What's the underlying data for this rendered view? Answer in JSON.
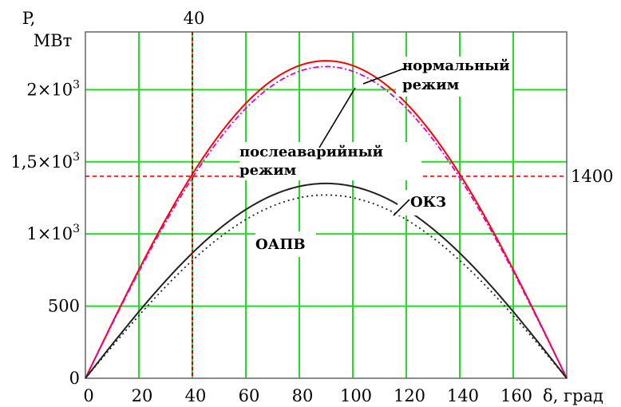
{
  "chart_data": {
    "type": "line",
    "ylabel": "P,",
    "yunit": "МВт",
    "xlabel": "δ, град",
    "xlim": [
      0,
      180
    ],
    "ylim": [
      0,
      2400
    ],
    "x_ticks": [
      "0",
      "20",
      "40",
      "60",
      "80",
      "100",
      "120",
      "140",
      "160"
    ],
    "y_ticks": [
      {
        "base": "0",
        "exp": ""
      },
      {
        "base": "500",
        "exp": ""
      },
      {
        "base": "1×10",
        "exp": "3"
      },
      {
        "base": "1,5×10",
        "exp": "3"
      },
      {
        "base": "2×10",
        "exp": "3"
      }
    ],
    "grid": true,
    "vline": {
      "x": 40,
      "label": "40",
      "color": "#cc0000"
    },
    "hline": {
      "y": 1400,
      "label": "1400",
      "color": "#ff0000"
    },
    "series": [
      {
        "key": "normal",
        "amplitude": 2200,
        "color": "#ff0000",
        "dash": "none",
        "x": [
          0,
          20,
          40,
          60,
          80,
          90,
          100,
          120,
          140,
          160,
          180
        ],
        "values": [
          0,
          752,
          1414,
          1905,
          2167,
          2200,
          2167,
          1905,
          1414,
          752,
          0
        ]
      },
      {
        "key": "post_emergency",
        "amplitude": 2160,
        "color": "#dd00dd",
        "dash": "7,3,2,3",
        "x": [
          0,
          20,
          40,
          60,
          80,
          90,
          100,
          120,
          140,
          160,
          180
        ],
        "values": [
          0,
          739,
          1388,
          1871,
          2127,
          2160,
          2127,
          1871,
          1388,
          739,
          0
        ]
      },
      {
        "key": "okz",
        "amplitude": 1350,
        "color": "#222222",
        "dash": "none",
        "x": [
          0,
          20,
          40,
          60,
          80,
          90,
          100,
          120,
          140,
          160,
          180
        ],
        "values": [
          0,
          462,
          868,
          1169,
          1330,
          1350,
          1330,
          1169,
          868,
          462,
          0
        ]
      },
      {
        "key": "oapv",
        "amplitude": 1270,
        "color": "#222222",
        "dash": "2,4",
        "x": [
          0,
          20,
          40,
          60,
          80,
          90,
          100,
          120,
          140,
          160,
          180
        ],
        "values": [
          0,
          434,
          816,
          1100,
          1251,
          1270,
          1251,
          1100,
          816,
          434,
          0
        ]
      }
    ],
    "annotations": [
      {
        "key": "normal",
        "lines": [
          "нормальный",
          "режим"
        ]
      },
      {
        "key": "post_emergency",
        "lines": [
          "послеаварийный",
          "режим"
        ]
      },
      {
        "key": "okz",
        "lines": [
          "ОКЗ"
        ]
      },
      {
        "key": "oapv",
        "lines": [
          "ОАПВ"
        ]
      }
    ]
  }
}
